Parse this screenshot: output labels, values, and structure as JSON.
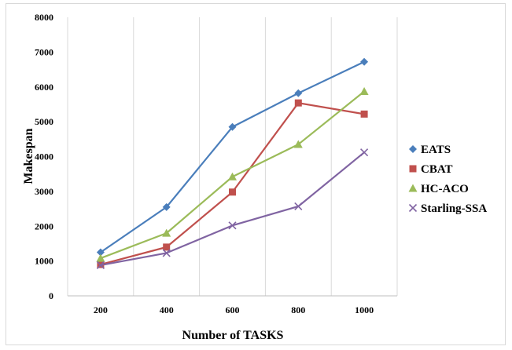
{
  "chart_data": {
    "type": "line",
    "title": "",
    "xlabel": "Number of TASKS",
    "ylabel": "Makespan",
    "categories": [
      "200",
      "400",
      "600",
      "800",
      "1000"
    ],
    "ylim": [
      0,
      8000
    ],
    "yticks": [
      "0",
      "1000",
      "2000",
      "3000",
      "4000",
      "5000",
      "6000",
      "7000",
      "8000"
    ],
    "grid": "vertical",
    "legend_position": "right",
    "series": [
      {
        "name": "EATS",
        "values": [
          1250,
          2550,
          4850,
          5820,
          6720
        ],
        "color": "#4a7ebb",
        "marker": "diamond"
      },
      {
        "name": "CBAT",
        "values": [
          900,
          1400,
          2980,
          5540,
          5220
        ],
        "color": "#c0504d",
        "marker": "square"
      },
      {
        "name": "HC-ACO",
        "values": [
          1080,
          1800,
          3420,
          4350,
          5870
        ],
        "color": "#9bbb59",
        "marker": "triangle"
      },
      {
        "name": "Starling-SSA",
        "values": [
          880,
          1230,
          2020,
          2570,
          4120
        ],
        "color": "#8064a2",
        "marker": "x"
      }
    ]
  }
}
